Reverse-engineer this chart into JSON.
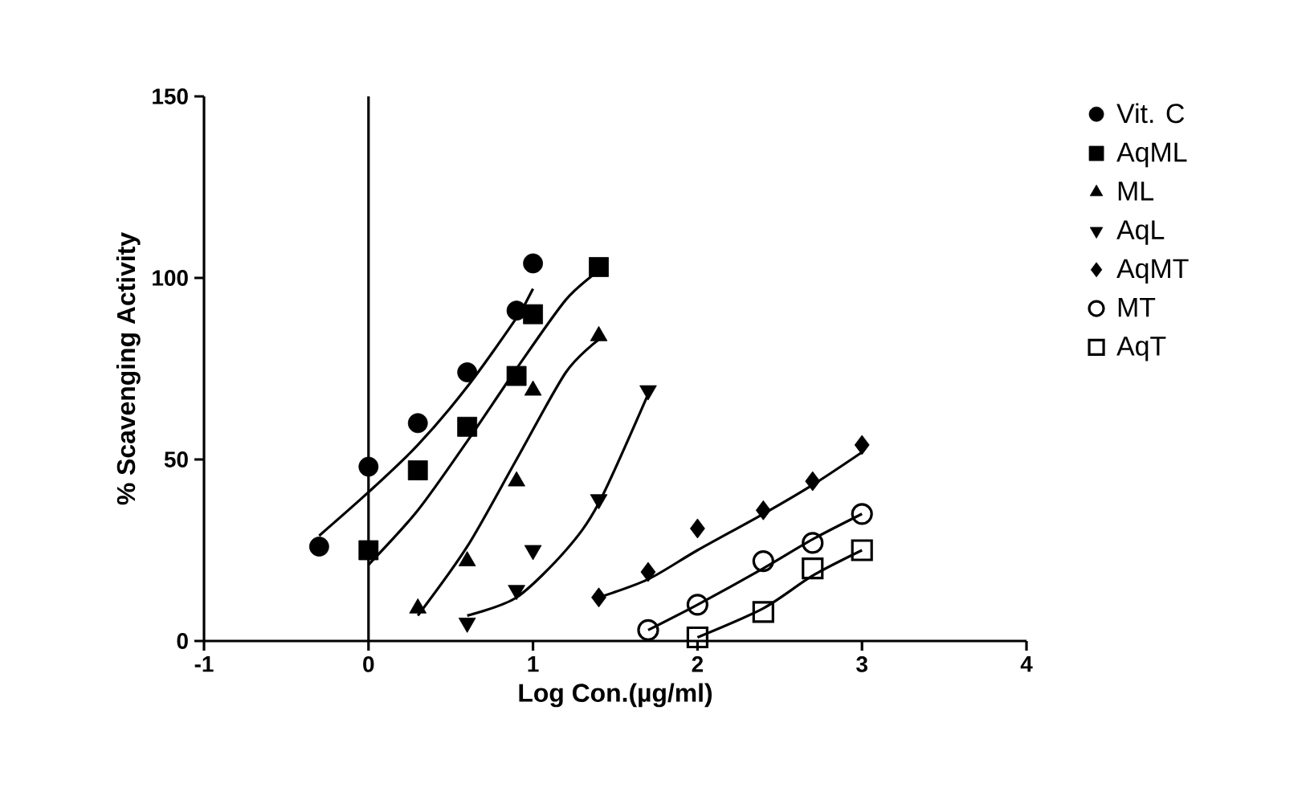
{
  "chart_data": {
    "type": "scatter",
    "xlabel": "Log Con.(µg/ml)",
    "ylabel": "% Scavenging Activity",
    "xlim": [
      -1,
      4
    ],
    "ylim": [
      0,
      150
    ],
    "xticks": [
      -1,
      0,
      1,
      2,
      3,
      4
    ],
    "yticks": [
      0,
      50,
      100,
      150
    ],
    "grid": false,
    "legend": "right",
    "ref_lines": [
      {
        "axis": "x",
        "value": 0,
        "color": "#000000"
      }
    ],
    "series": [
      {
        "name": "Vit. C",
        "color": "#000000",
        "marker": "circle",
        "x": [
          -0.3,
          0,
          0.3,
          0.6,
          0.9,
          1.0
        ],
        "values": [
          26,
          48,
          60,
          74,
          91,
          104
        ]
      },
      {
        "name": "AqML",
        "color": "#000000",
        "marker": "square",
        "x": [
          0,
          0.3,
          0.6,
          0.9,
          1.0,
          1.4
        ],
        "values": [
          25,
          47,
          59,
          73,
          90,
          103
        ]
      },
      {
        "name": "ML",
        "color": "#000000",
        "marker": "triangle",
        "x": [
          0.3,
          0.6,
          0.9,
          1.0,
          1.4
        ],
        "values": [
          9,
          22,
          44,
          69,
          84
        ]
      },
      {
        "name": "AqL",
        "color": "#000000",
        "marker": "triangle-down",
        "x": [
          0.6,
          0.9,
          1.0,
          1.4,
          1.7
        ],
        "values": [
          5,
          14,
          25,
          39,
          69
        ]
      },
      {
        "name": "AqMT",
        "color": "#000000",
        "marker": "diamond",
        "x": [
          1.4,
          1.7,
          2.0,
          2.4,
          2.7,
          3.0
        ],
        "values": [
          12,
          19,
          31,
          36,
          44,
          54
        ]
      },
      {
        "name": "MT",
        "color": "#000000",
        "marker": "circle-open",
        "x": [
          1.7,
          2.0,
          2.4,
          2.7,
          3.0
        ],
        "values": [
          3,
          10,
          22,
          27,
          35
        ]
      },
      {
        "name": "AqT",
        "color": "#000000",
        "marker": "square-open",
        "x": [
          2.0,
          2.4,
          2.7,
          3.0
        ],
        "values": [
          1,
          8,
          20,
          25
        ]
      },
      {
        "type": "line",
        "color": "#000000",
        "marker": "none",
        "x": [
          -0.3,
          0,
          0.3,
          0.6,
          0.9,
          1.0
        ],
        "values": [
          29,
          41,
          54,
          70,
          89,
          97
        ]
      },
      {
        "type": "line",
        "color": "#000000",
        "marker": "none",
        "x": [
          0,
          0.3,
          0.6,
          0.9,
          1.2,
          1.4
        ],
        "values": [
          21,
          36,
          55,
          75,
          94,
          102
        ]
      },
      {
        "type": "line",
        "color": "#000000",
        "marker": "none",
        "x": [
          0.3,
          0.6,
          0.9,
          1.2,
          1.4
        ],
        "values": [
          7,
          26,
          50,
          74,
          83
        ]
      },
      {
        "type": "line",
        "color": "#000000",
        "marker": "none",
        "x": [
          0.6,
          0.9,
          1.2,
          1.4,
          1.7
        ],
        "values": [
          7,
          12,
          25,
          38,
          68
        ]
      },
      {
        "type": "line",
        "color": "#000000",
        "marker": "none",
        "x": [
          1.4,
          1.7,
          2.0,
          2.4,
          2.7,
          3.0
        ],
        "values": [
          12,
          17,
          25,
          35,
          43,
          52
        ]
      },
      {
        "type": "line",
        "color": "#000000",
        "marker": "none",
        "x": [
          1.7,
          2.0,
          2.4,
          2.7,
          3.0
        ],
        "values": [
          3,
          10,
          20,
          28,
          35
        ]
      },
      {
        "type": "line",
        "color": "#000000",
        "marker": "none",
        "x": [
          2.0,
          2.4,
          2.7,
          3.0
        ],
        "values": [
          1,
          9,
          18,
          25
        ]
      }
    ]
  }
}
